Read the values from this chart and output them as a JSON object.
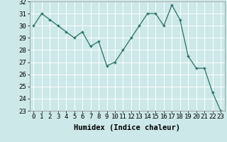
{
  "x": [
    0,
    1,
    2,
    3,
    4,
    5,
    6,
    7,
    8,
    9,
    10,
    11,
    12,
    13,
    14,
    15,
    16,
    17,
    18,
    19,
    20,
    21,
    22,
    23
  ],
  "y": [
    30.0,
    31.0,
    30.5,
    30.0,
    29.5,
    29.0,
    29.5,
    28.3,
    28.7,
    26.7,
    27.0,
    28.0,
    29.0,
    30.0,
    31.0,
    31.0,
    30.0,
    31.7,
    30.5,
    27.5,
    26.5,
    26.5,
    24.5,
    23.0
  ],
  "xlabel": "Humidex (Indice chaleur)",
  "ylim": [
    23,
    32
  ],
  "yticks": [
    23,
    24,
    25,
    26,
    27,
    28,
    29,
    30,
    31,
    32
  ],
  "line_color": "#2d7068",
  "marker": "+",
  "bg_color": "#cce8e8",
  "grid_color": "#ffffff",
  "tick_label_fontsize": 6.5,
  "xlabel_fontsize": 7.5
}
